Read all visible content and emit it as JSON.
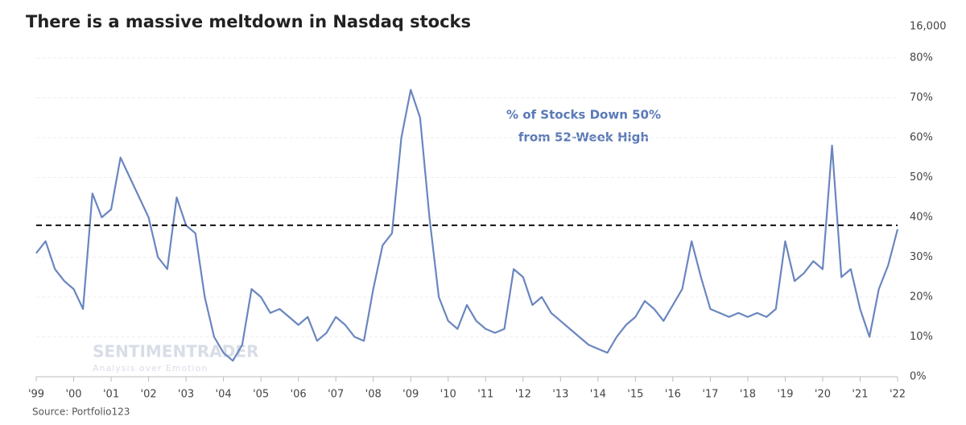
{
  "chart_data": {
    "type": "line",
    "title": "There is a massive meltdown in Nasdaq stocks",
    "annotations": [
      "% of Stocks Down 50%",
      "from 52-Week High"
    ],
    "watermark": [
      "SENTIMENTRADER",
      "Analysis over Emotion"
    ],
    "source": "Source: Portfolio123",
    "x": [
      1999,
      1999.25,
      1999.5,
      1999.75,
      2000,
      2000.25,
      2000.5,
      2000.75,
      2001,
      2001.25,
      2001.5,
      2001.75,
      2002,
      2002.25,
      2002.5,
      2002.75,
      2003,
      2003.25,
      2003.5,
      2003.75,
      2004,
      2004.25,
      2004.5,
      2004.75,
      2005,
      2005.25,
      2005.5,
      2005.75,
      2006,
      2006.25,
      2006.5,
      2006.75,
      2007,
      2007.25,
      2007.5,
      2007.75,
      2008,
      2008.25,
      2008.5,
      2008.75,
      2009,
      2009.25,
      2009.5,
      2009.75,
      2010,
      2010.25,
      2010.5,
      2010.75,
      2011,
      2011.25,
      2011.5,
      2011.75,
      2012,
      2012.25,
      2012.5,
      2012.75,
      2013,
      2013.25,
      2013.5,
      2013.75,
      2014,
      2014.25,
      2014.5,
      2014.75,
      2015,
      2015.25,
      2015.5,
      2015.75,
      2016,
      2016.25,
      2016.5,
      2016.75,
      2017,
      2017.25,
      2017.5,
      2017.75,
      2018,
      2018.25,
      2018.5,
      2018.75,
      2019,
      2019.25,
      2019.5,
      2019.75,
      2020,
      2020.25,
      2020.5,
      2020.75,
      2021,
      2021.25,
      2021.5,
      2021.75,
      2022
    ],
    "series": [
      {
        "name": "% of Stocks Down 50% from 52-Week High",
        "color": "#6a86c0",
        "values": [
          31,
          34,
          27,
          24,
          22,
          17,
          46,
          40,
          42,
          55,
          50,
          45,
          40,
          30,
          27,
          45,
          38,
          36,
          20,
          10,
          6,
          4,
          8,
          22,
          20,
          16,
          17,
          15,
          13,
          15,
          9,
          11,
          15,
          13,
          10,
          9,
          22,
          33,
          36,
          60,
          72,
          65,
          40,
          20,
          14,
          12,
          18,
          14,
          12,
          11,
          12,
          27,
          25,
          18,
          20,
          16,
          14,
          12,
          10,
          8,
          7,
          6,
          10,
          13,
          15,
          19,
          17,
          14,
          18,
          22,
          34,
          25,
          17,
          16,
          15,
          16,
          15,
          16,
          15,
          17,
          34,
          24,
          26,
          29,
          27,
          58,
          25,
          27,
          17,
          10,
          22,
          28,
          37
        ]
      }
    ],
    "hline": 38,
    "xlim": [
      1999,
      2022
    ],
    "xticks": [
      {
        "value": 1999,
        "label": "'99"
      },
      {
        "value": 2000,
        "label": "'00"
      },
      {
        "value": 2001,
        "label": "'01"
      },
      {
        "value": 2002,
        "label": "'02"
      },
      {
        "value": 2003,
        "label": "'03"
      },
      {
        "value": 2004,
        "label": "'04"
      },
      {
        "value": 2005,
        "label": "'05"
      },
      {
        "value": 2006,
        "label": "'06"
      },
      {
        "value": 2007,
        "label": "'07"
      },
      {
        "value": 2008,
        "label": "'08"
      },
      {
        "value": 2009,
        "label": "'09"
      },
      {
        "value": 2010,
        "label": "'10"
      },
      {
        "value": 2011,
        "label": "'11"
      },
      {
        "value": 2012,
        "label": "'12"
      },
      {
        "value": 2013,
        "label": "'13"
      },
      {
        "value": 2014,
        "label": "'14"
      },
      {
        "value": 2015,
        "label": "'15"
      },
      {
        "value": 2016,
        "label": "'16"
      },
      {
        "value": 2017,
        "label": "'17"
      },
      {
        "value": 2018,
        "label": "'18"
      },
      {
        "value": 2019,
        "label": "'19"
      },
      {
        "value": 2020,
        "label": "'20"
      },
      {
        "value": 2021,
        "label": "'21"
      },
      {
        "value": 2022,
        "label": "'22"
      }
    ],
    "ylim": [
      0,
      80
    ],
    "yticks": [
      {
        "value": 0,
        "label": "0%"
      },
      {
        "value": 10,
        "label": "10%"
      },
      {
        "value": 20,
        "label": "20%"
      },
      {
        "value": 30,
        "label": "30%"
      },
      {
        "value": 40,
        "label": "40%"
      },
      {
        "value": 50,
        "label": "50%"
      },
      {
        "value": 60,
        "label": "60%"
      },
      {
        "value": 70,
        "label": "70%"
      },
      {
        "value": 80,
        "label": "80%"
      }
    ],
    "y2lim": [
      0,
      16000
    ],
    "y2ticks": [
      {
        "value": 16000,
        "label": "16,000"
      }
    ],
    "grid": true
  }
}
